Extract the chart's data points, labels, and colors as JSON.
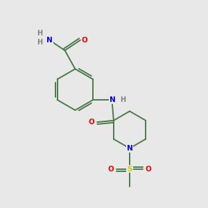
{
  "background_color": "#e8e8e8",
  "bond_color": "#4a7a4a",
  "atom_colors": {
    "N": "#0000ff",
    "O": "#ff0000",
    "S": "#cccc00",
    "H": "#808080"
  },
  "figsize": [
    3.0,
    3.0
  ],
  "dpi": 100
}
